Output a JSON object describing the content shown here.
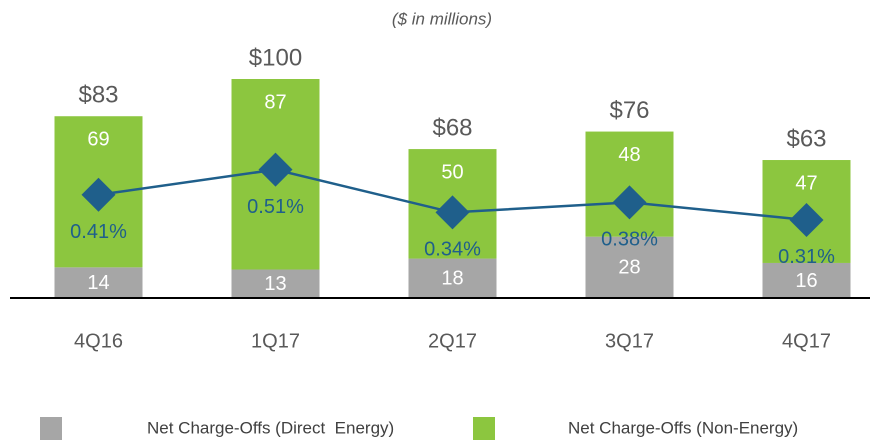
{
  "chart_data": {
    "type": "bar",
    "subtitle": "($ in millions)",
    "categories": [
      "4Q16",
      "1Q17",
      "2Q17",
      "3Q17",
      "4Q17"
    ],
    "series": [
      {
        "name": "Net Charge-Offs (Direct  Energy)",
        "color": "#a6a6a6",
        "values": [
          14,
          13,
          18,
          28,
          16
        ]
      },
      {
        "name": "Net Charge-Offs (Non-Energy)",
        "color": "#8cc63f",
        "values": [
          69,
          87,
          50,
          48,
          47
        ]
      }
    ],
    "total_labels": [
      "$83",
      "$100",
      "$68",
      "$76",
      "$63"
    ],
    "line": {
      "type": "line",
      "axis": "y2",
      "color": "#1f5f8b",
      "values": [
        0.41,
        0.51,
        0.34,
        0.38,
        0.31
      ],
      "value_labels": [
        "0.41%",
        "0.51%",
        "0.34%",
        "0.38%",
        "0.31%"
      ]
    },
    "ylim": [
      0,
      100
    ],
    "y2lim": [
      0,
      0.87
    ],
    "stacked": true
  }
}
